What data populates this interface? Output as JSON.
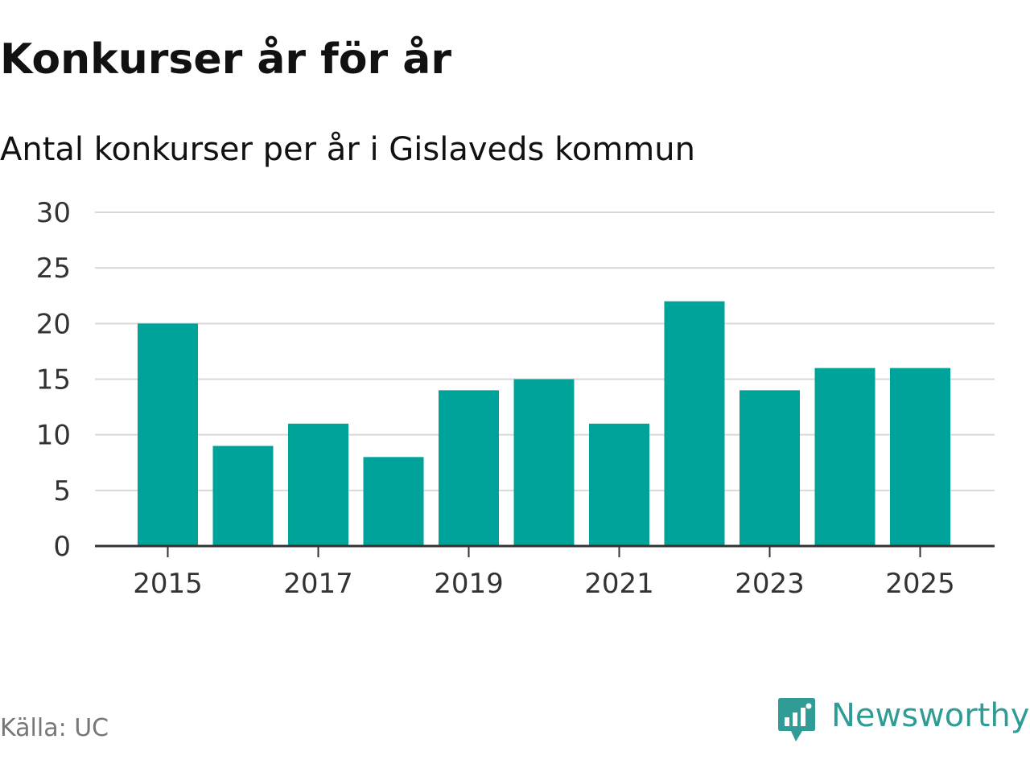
{
  "header": {
    "title": "Konkurser år för år",
    "subtitle": "Antal konkurser per år i Gislaveds kommun"
  },
  "footer": {
    "source": "Källa: UC",
    "brand": "Newsworthy"
  },
  "colors": {
    "bar": "#00a39a",
    "grid": "#d9d9d9",
    "axis": "#333333",
    "brand": "#2f9c96"
  },
  "chart_data": {
    "type": "bar",
    "title": "Konkurser år för år",
    "subtitle": "Antal konkurser per år i Gislaveds kommun",
    "xlabel": "",
    "ylabel": "",
    "categories": [
      "2015",
      "2016",
      "2017",
      "2018",
      "2019",
      "2020",
      "2021",
      "2022",
      "2023",
      "2024",
      "2025"
    ],
    "values": [
      20,
      9,
      11,
      8,
      14,
      15,
      11,
      22,
      14,
      16,
      16
    ],
    "x_tick_labels": [
      "2015",
      "2017",
      "2019",
      "2021",
      "2023",
      "2025"
    ],
    "y_ticks": [
      0,
      5,
      10,
      15,
      20,
      25,
      30
    ],
    "ylim": [
      0,
      30
    ],
    "grid": true,
    "legend": "none"
  }
}
